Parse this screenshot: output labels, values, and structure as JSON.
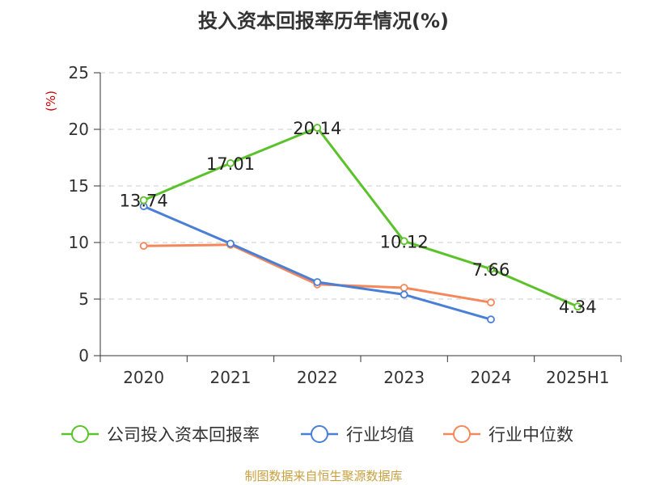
{
  "title": "投入资本回报率历年情况(%)",
  "footer": "制图数据来自恒生聚源数据库",
  "chart_data": {
    "type": "line",
    "title": "投入资本回报率历年情况(%)",
    "ylabel": "(%)",
    "xlabel": "",
    "categories": [
      "2020",
      "2021",
      "2022",
      "2023",
      "2024",
      "2025H1"
    ],
    "ylim": [
      0,
      25
    ],
    "yticks": [
      0,
      5,
      10,
      15,
      20,
      25
    ],
    "grid": true,
    "legend_position": "bottom",
    "series": [
      {
        "name": "公司投入资本回报率",
        "color": "#5cc22c",
        "values": [
          13.74,
          17.01,
          20.14,
          10.12,
          7.66,
          4.34
        ],
        "labels": [
          "13.74",
          "17.01",
          "20.14",
          "10.12",
          "7.66",
          "4.34"
        ]
      },
      {
        "name": "行业均值",
        "color": "#4a7fd6",
        "values": [
          13.2,
          9.9,
          6.5,
          5.4,
          3.2,
          null
        ]
      },
      {
        "name": "行业中位数",
        "color": "#f5885a",
        "values": [
          9.7,
          9.8,
          6.3,
          6.0,
          4.7,
          null
        ]
      }
    ]
  }
}
